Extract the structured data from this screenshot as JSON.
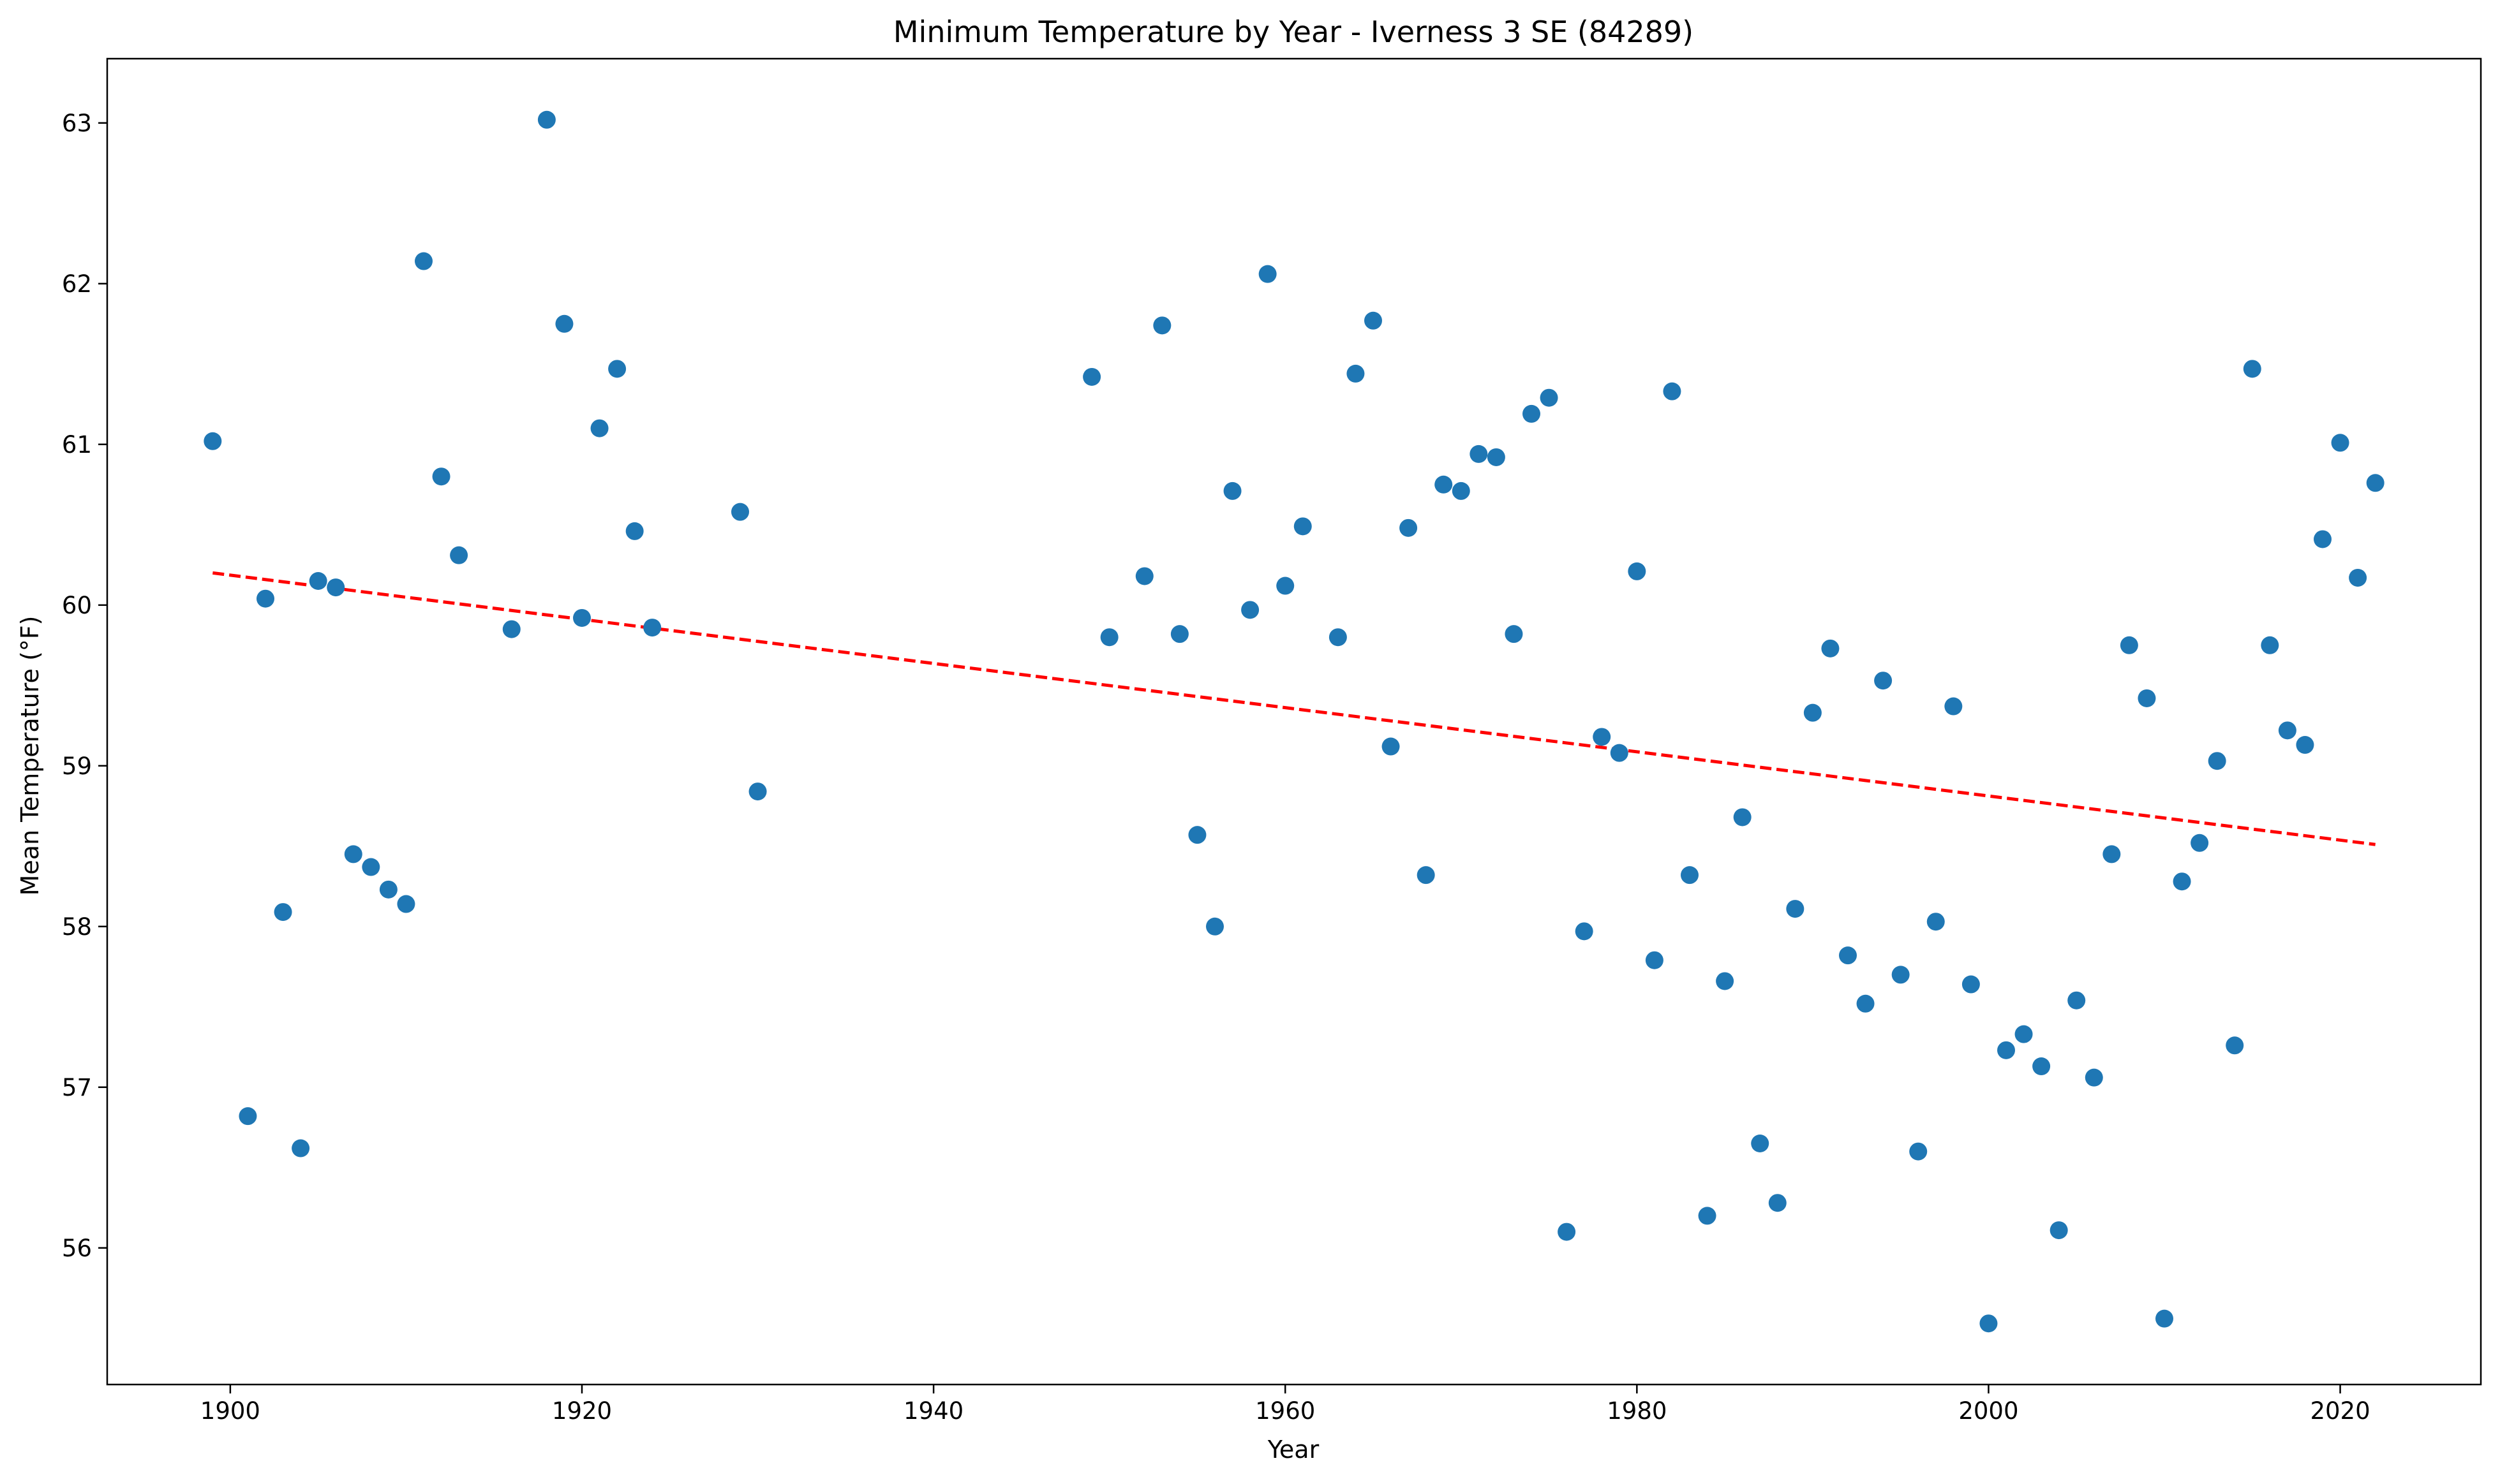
{
  "chart_data": {
    "type": "scatter",
    "title": "Minimum Temperature by Year - Iverness 3 SE (84289)",
    "xlabel": "Year",
    "ylabel": "Mean Temperature (°F)",
    "xlim": [
      1893,
      2028
    ],
    "ylim": [
      55.15,
      63.4
    ],
    "xticks": [
      1900,
      1920,
      1940,
      1960,
      1980,
      2000,
      2020
    ],
    "yticks": [
      56,
      57,
      58,
      59,
      60,
      61,
      62,
      63
    ],
    "grid": false,
    "legend": "none",
    "points_color": "#1f77b4",
    "trend_color": "#ff0000",
    "x": [
      1899,
      1901,
      1902,
      1903,
      1904,
      1905,
      1906,
      1907,
      1908,
      1909,
      1910,
      1911,
      1912,
      1913,
      1916,
      1918,
      1919,
      1920,
      1921,
      1922,
      1923,
      1924,
      1929,
      1930,
      1949,
      1950,
      1952,
      1953,
      1954,
      1955,
      1956,
      1957,
      1958,
      1959,
      1960,
      1961,
      1963,
      1964,
      1965,
      1966,
      1967,
      1968,
      1969,
      1970,
      1971,
      1972,
      1973,
      1974,
      1975,
      1976,
      1977,
      1978,
      1979,
      1980,
      1981,
      1982,
      1983,
      1984,
      1985,
      1986,
      1987,
      1988,
      1989,
      1990,
      1991,
      1992,
      1993,
      1994,
      1995,
      1996,
      1997,
      1998,
      1999,
      2000,
      2001,
      2002,
      2003,
      2004,
      2005,
      2006,
      2007,
      2008,
      2009,
      2010,
      2011,
      2012,
      2013,
      2014,
      2015,
      2016,
      2017,
      2018,
      2019,
      2020,
      2021,
      2022
    ],
    "y": [
      61.02,
      56.82,
      60.04,
      58.09,
      56.62,
      60.15,
      60.11,
      58.45,
      58.37,
      58.23,
      58.14,
      62.14,
      60.8,
      60.31,
      59.85,
      63.02,
      61.75,
      59.92,
      61.1,
      61.47,
      60.46,
      59.86,
      60.58,
      58.84,
      61.42,
      59.8,
      60.18,
      61.74,
      59.82,
      58.57,
      58.0,
      60.71,
      59.97,
      62.06,
      60.12,
      60.49,
      59.8,
      61.44,
      61.77,
      59.12,
      60.48,
      58.32,
      60.75,
      60.71,
      60.94,
      60.92,
      59.82,
      61.19,
      61.29,
      56.1,
      57.97,
      59.18,
      59.08,
      60.21,
      57.79,
      61.33,
      58.32,
      56.2,
      57.66,
      58.68,
      56.65,
      56.28,
      58.11,
      59.33,
      59.73,
      57.82,
      57.52,
      59.53,
      57.7,
      56.6,
      58.03,
      59.37,
      57.64,
      55.53,
      57.23,
      57.33,
      57.13,
      56.11,
      57.54,
      57.06,
      58.45,
      59.75,
      59.42,
      55.56,
      58.28,
      58.52,
      59.03,
      57.26,
      61.47,
      59.75,
      59.22,
      59.13,
      60.41,
      61.01,
      60.17,
      60.76
    ],
    "trend": {
      "x": [
        1899,
        2022
      ],
      "y": [
        60.2,
        58.51
      ]
    }
  }
}
